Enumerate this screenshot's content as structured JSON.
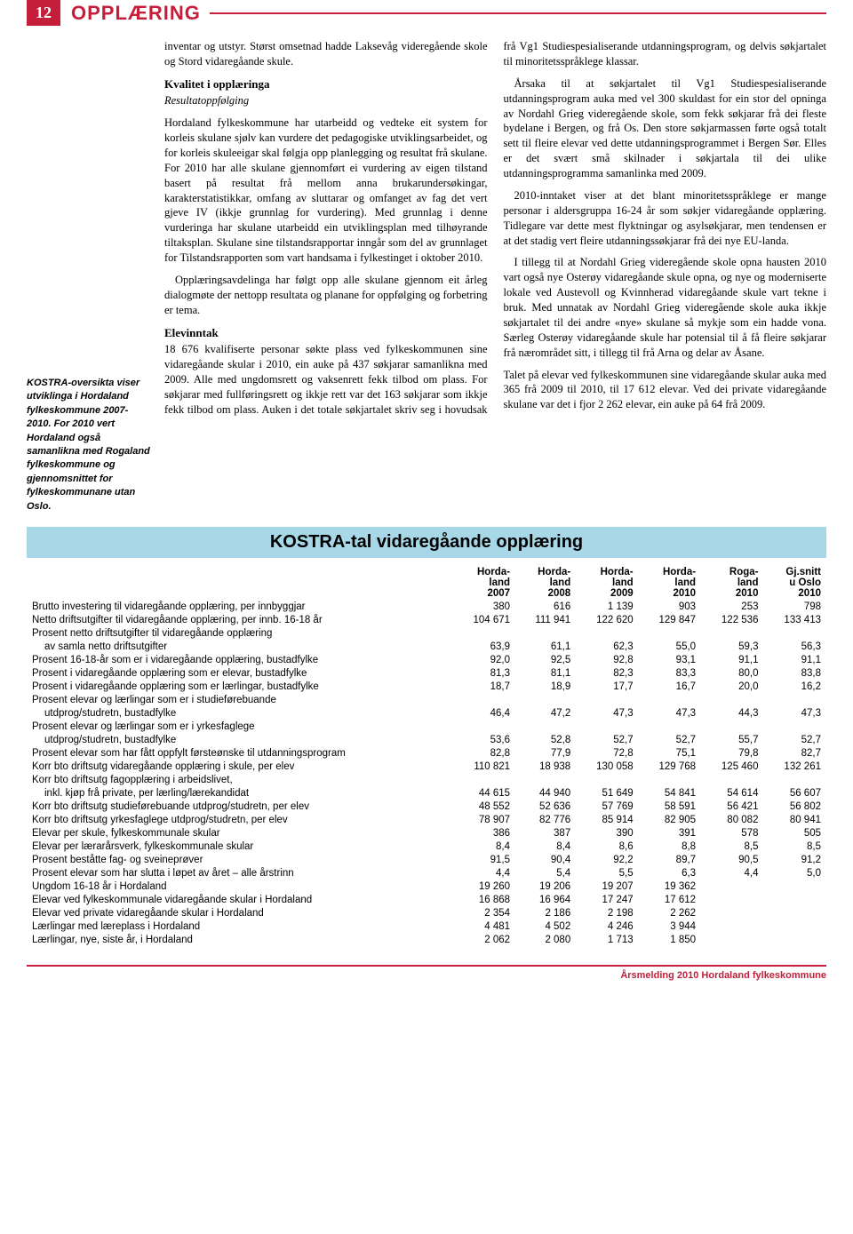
{
  "header": {
    "pagenum": "12",
    "section": "OPPLÆRING"
  },
  "sidebar": {
    "text": "KOSTRA-oversikta viser utviklinga i Hordaland fylkeskommune 2007-2010. For 2010 vert Hordaland også samanlikna med Rogaland fylkeskommune og gjennomsnittet for fylkeskommunane utan Oslo."
  },
  "body": {
    "p1": "inventar og utstyr. Størst omsetnad hadde Laksevåg videregående skole og Stord vidaregåande skule.",
    "h1": "Kvalitet i opplæringa",
    "h1sub": "Resultatoppfølging",
    "p2": "Hordaland fylkeskommune har utarbeidd og vedteke eit system for korleis skulane sjølv kan vurdere det pedagogiske utviklingsarbeidet, og for korleis skuleeigar skal følgja opp planlegging og resultat frå skulane. For 2010 har alle skulane gjennomført ei vurdering av eigen tilstand basert på resultat frå mellom anna brukarundersøkingar, karakterstatistikkar, omfang av sluttarar og omfanget av fag det vert gjeve IV (ikkje grunnlag for vurdering). Med grunnlag i denne vurderinga har skulane utarbeidd ein utviklingsplan med tilhøyrande tiltaksplan. Skulane sine tilstandsrapportar inngår som del av grunnlaget for Tilstandsrapporten som vart handsama i fylkestinget i oktober 2010.",
    "p3": "Opplæringsavdelinga har følgt opp alle skulane gjennom eit årleg dialogmøte der nettopp resultata og planane for oppfølging og forbetring er tema.",
    "h2": "Elevinntak",
    "p4": "18 676 kvalifiserte personar søkte plass ved fylkeskommunen sine vidaregåande skular i 2010, ein auke på 437 søkjarar samanlikna med 2009. Alle med ungdomsrett og vaksenrett fekk tilbod om plass. For søkjarar med fullføringsrett og ikkje rett var det 163 søkjarar som ikkje fekk tilbod om plass. Auken i det totale søkjartalet skriv seg i hovudsak frå Vg1 Studiespesialiserande utdanningsprogram, og delvis søkjartalet til minoritetsspråklege klassar.",
    "p5": "Årsaka til at søkjartalet til Vg1 Studiespesialiserande utdanningsprogram auka med vel 300 skuldast for ein stor del opninga av Nordahl Grieg videregående skole, som fekk søkjarar frå dei fleste bydelane i Bergen, og frå Os. Den store søkjarmassen førte også totalt sett til fleire elevar ved dette utdanningsprogrammet i Bergen Sør. Elles er det svært små skilnader i søkjartala til dei ulike utdanningsprogramma samanlinka med 2009.",
    "p6": "2010-inntaket viser at det blant minoritetsspråklege er mange personar i aldersgruppa 16-24 år som søkjer vidaregåande opplæring. Tidlegare var dette mest flyktningar og asylsøkjarar, men tendensen er at det stadig vert fleire utdanningssøkjarar frå dei nye EU-landa.",
    "p7": "I tillegg til at Nordahl Grieg videregående skole opna hausten 2010 vart også nye Osterøy vidaregåande skule opna, og nye og moderniserte lokale ved Austevoll og Kvinnherad vidaregåande skule vart tekne i bruk. Med unnatak av Nordahl Grieg videregående skole auka ikkje søkjartalet til dei andre «nye» skulane så mykje som ein hadde vona. Særleg Osterøy vidaregåande skule har potensial til å få fleire søkjarar frå nærområdet sitt, i tillegg til frå Arna og delar av Åsane.",
    "p8": "Talet på elevar ved fylkeskommunen sine vidaregåande skular auka med 365 frå 2009 til 2010, til 17 612 elevar. Ved dei private vidaregåande skulane var det i fjor 2 262 elevar, ein auke på 64 frå 2009."
  },
  "table": {
    "title": "KOSTRA-tal vidaregåande opplæring",
    "columns": [
      "",
      "Horda-\nland\n2007",
      "Horda-\nland\n2008",
      "Horda-\nland\n2009",
      "Horda-\nland\n2010",
      "Roga-\nland\n2010",
      "Gj.snitt\nu Oslo\n2010"
    ],
    "rows": [
      {
        "label": "Brutto investering til vidaregåande opplæring, per innbyggjar",
        "v": [
          "380",
          "616",
          "1 139",
          "903",
          "253",
          "798"
        ]
      },
      {
        "label": "Netto driftsutgifter til vidaregåande opplæring, per innb. 16-18 år",
        "v": [
          "104 671",
          "111 941",
          "122 620",
          "129 847",
          "122 536",
          "133 413"
        ]
      },
      {
        "label": "Prosent netto driftsutgifter til vidaregåande opplæring",
        "v": [
          "",
          "",
          "",
          "",
          "",
          ""
        ]
      },
      {
        "label": "av samla netto driftsutgifter",
        "indent": true,
        "v": [
          "63,9",
          "61,1",
          "62,3",
          "55,0",
          "59,3",
          "56,3"
        ]
      },
      {
        "label": "Prosent 16-18-år som er i vidaregåande opplæring, bustadfylke",
        "v": [
          "92,0",
          "92,5",
          "92,8",
          "93,1",
          "91,1",
          "91,1"
        ]
      },
      {
        "label": "Prosent i vidaregåande opplæring som er elevar, bustadfylke",
        "v": [
          "81,3",
          "81,1",
          "82,3",
          "83,3",
          "80,0",
          "83,8"
        ]
      },
      {
        "label": "Prosent i vidaregåande opplæring som er lærlingar, bustadfylke",
        "v": [
          "18,7",
          "18,9",
          "17,7",
          "16,7",
          "20,0",
          "16,2"
        ]
      },
      {
        "label": "Prosent elevar og lærlingar som er i studieførebuande",
        "v": [
          "",
          "",
          "",
          "",
          "",
          ""
        ]
      },
      {
        "label": "utdprog/studretn, bustadfylke",
        "indent": true,
        "v": [
          "46,4",
          "47,2",
          "47,3",
          "47,3",
          "44,3",
          "47,3"
        ]
      },
      {
        "label": "Prosent elevar og lærlingar som er i yrkesfaglege",
        "v": [
          "",
          "",
          "",
          "",
          "",
          ""
        ]
      },
      {
        "label": "utdprog/studretn, bustadfylke",
        "indent": true,
        "v": [
          "53,6",
          "52,8",
          "52,7",
          "52,7",
          "55,7",
          "52,7"
        ]
      },
      {
        "label": "Prosent elevar som har fått oppfylt førsteønske til utdanningsprogram",
        "v": [
          "82,8",
          "77,9",
          "72,8",
          "75,1",
          "79,8",
          "82,7"
        ]
      },
      {
        "label": "Korr bto driftsutg vidaregåande opplæring i skule, per elev",
        "v": [
          "110 821",
          "18 938",
          "130 058",
          "129 768",
          "125 460",
          "132 261"
        ]
      },
      {
        "label": "Korr bto driftsutg fagopplæring i arbeidslivet,",
        "v": [
          "",
          "",
          "",
          "",
          "",
          ""
        ]
      },
      {
        "label": "inkl. kjøp frå private, per lærling/lærekandidat",
        "indent": true,
        "v": [
          "44 615",
          "44 940",
          "51 649",
          "54 841",
          "54 614",
          "56 607"
        ]
      },
      {
        "label": "Korr bto driftsutg studieførebuande utdprog/studretn, per elev",
        "v": [
          "48 552",
          "52 636",
          "57 769",
          "58 591",
          "56 421",
          "56 802"
        ]
      },
      {
        "label": "Korr bto driftsutg yrkesfaglege utdprog/studretn, per elev",
        "v": [
          "78 907",
          "82 776",
          "85 914",
          "82 905",
          "80 082",
          "80 941"
        ]
      },
      {
        "label": "Elevar per skule, fylkeskommunale skular",
        "v": [
          "386",
          "387",
          "390",
          "391",
          "578",
          "505"
        ]
      },
      {
        "label": "Elevar per lærarårsverk, fylkeskommunale skular",
        "v": [
          "8,4",
          "8,4",
          "8,6",
          "8,8",
          "8,5",
          "8,5"
        ]
      },
      {
        "label": "Prosent beståtte fag- og sveineprøver",
        "v": [
          "91,5",
          "90,4",
          "92,2",
          "89,7",
          "90,5",
          "91,2"
        ]
      },
      {
        "label": "Prosent elevar som har slutta i løpet av året – alle årstrinn",
        "v": [
          "4,4",
          "5,4",
          "5,5",
          "6,3",
          "4,4",
          "5,0"
        ]
      },
      {
        "label": "Ungdom 16-18 år i Hordaland",
        "v": [
          "19 260",
          "19 206",
          "19 207",
          "19 362",
          "",
          ""
        ]
      },
      {
        "label": "Elevar ved fylkeskommunale vidaregåande skular i Hordaland",
        "v": [
          "16 868",
          "16 964",
          "17 247",
          "17 612",
          "",
          ""
        ]
      },
      {
        "label": "Elevar ved private vidaregåande skular i Hordaland",
        "v": [
          "2 354",
          "2 186",
          "2 198",
          "2 262",
          "",
          ""
        ]
      },
      {
        "label": "Lærlingar med læreplass i Hordaland",
        "v": [
          "4 481",
          "4 502",
          "4 246",
          "3 944",
          "",
          ""
        ]
      },
      {
        "label": "Lærlingar, nye, siste år, i Hordaland",
        "v": [
          "2 062",
          "2 080",
          "1 713",
          "1 850",
          "",
          ""
        ]
      }
    ]
  },
  "footer": "Årsmelding 2010 Hordaland fylkeskommune"
}
